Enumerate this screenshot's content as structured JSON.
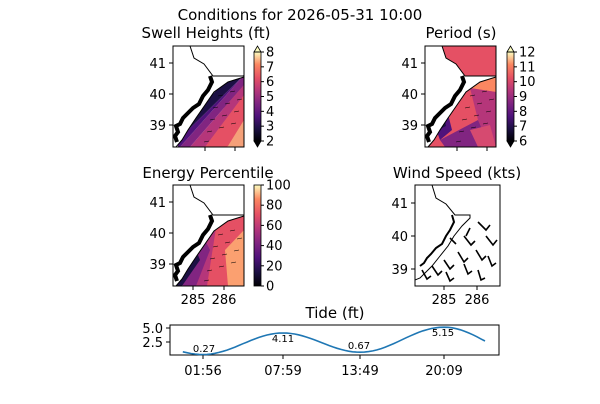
{
  "chart_data": {
    "title": "Conditions for 2026-05-31 10:00",
    "panels": [
      {
        "id": "swell",
        "type": "heatmap",
        "title": "Swell Heights (ft)",
        "colormap": "magma",
        "y_ticks": [
          "41",
          "40",
          "39"
        ],
        "x_ticks": [],
        "colorbar": {
          "ticks": [
            "8",
            "7",
            "6",
            "5",
            "4",
            "3",
            "2"
          ],
          "min": 2,
          "max": 8,
          "extend": "both"
        }
      },
      {
        "id": "period",
        "type": "heatmap",
        "title": "Period (s)",
        "colormap": "magma",
        "y_ticks": [
          "41",
          "40",
          "39"
        ],
        "x_ticks": [],
        "colorbar": {
          "ticks": [
            "12",
            "11",
            "10",
            "9",
            "8",
            "7",
            "6"
          ],
          "min": 6,
          "max": 12,
          "extend": "both"
        }
      },
      {
        "id": "energy",
        "type": "heatmap",
        "title": "Energy Percentile",
        "colormap": "magma",
        "y_ticks": [
          "41",
          "40",
          "39"
        ],
        "x_ticks": [
          "285",
          "286"
        ],
        "colorbar": {
          "ticks": [
            "100",
            "80",
            "60",
            "40",
            "20",
            "0"
          ],
          "min": 0,
          "max": 100,
          "extend": "none"
        }
      },
      {
        "id": "wind",
        "type": "other",
        "title": "Wind Speed (kts)",
        "y_ticks": [
          "41",
          "40",
          "39"
        ],
        "x_ticks": [
          "285",
          "286"
        ]
      }
    ],
    "tide": {
      "type": "line",
      "title": "Tide (ft)",
      "y_ticks": [
        "5.0",
        "2.5"
      ],
      "x_ticks": [
        "01:56",
        "07:59",
        "13:49",
        "20:09"
      ],
      "extrema": [
        {
          "time": "01:56",
          "value": "0.27"
        },
        {
          "time": "07:59",
          "value": "4.11"
        },
        {
          "time": "13:49",
          "value": "0.67"
        },
        {
          "time": "20:09",
          "value": "5.15"
        }
      ],
      "line_color": "#1f77b4"
    }
  }
}
